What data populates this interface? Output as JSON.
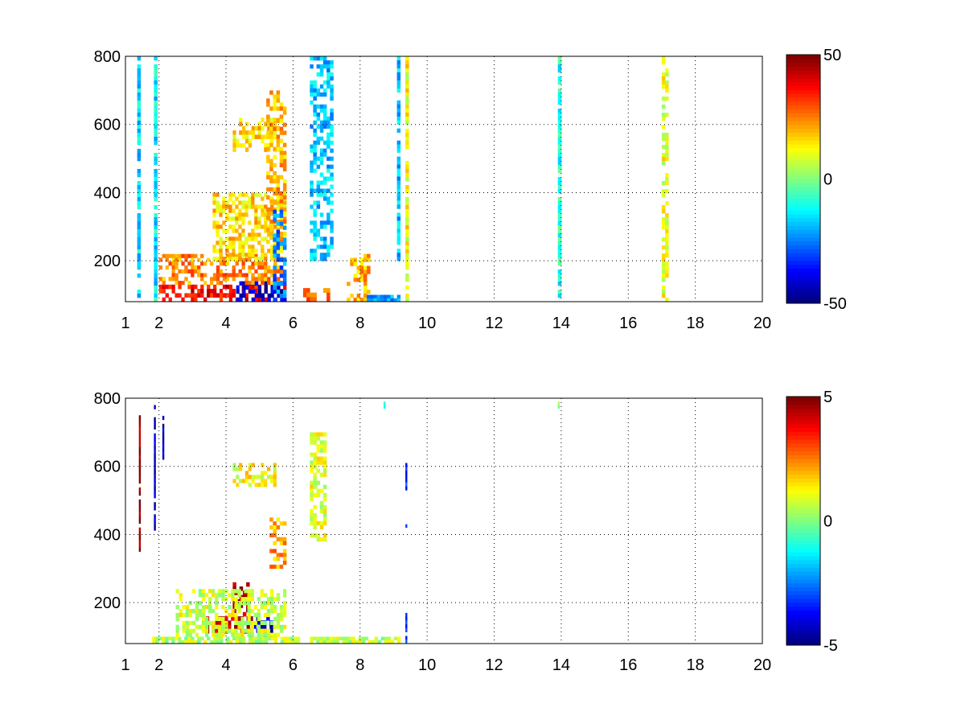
{
  "chart_data": [
    {
      "type": "heatmap",
      "title": "",
      "xlabel": "",
      "ylabel": "",
      "xlim": [
        1,
        20
      ],
      "ylim": [
        80,
        800
      ],
      "xticks": [
        "1",
        "2",
        "4",
        "6",
        "8",
        "10",
        "12",
        "14",
        "16",
        "18",
        "20"
      ],
      "yticks": [
        "200",
        "400",
        "600",
        "800"
      ],
      "grid": true,
      "colormap": "jet",
      "colorbar": {
        "clim": [
          -50,
          50
        ],
        "ticks": [
          "-50",
          "0",
          "50"
        ]
      },
      "features": [
        {
          "x": [
            2.0,
            5.8
          ],
          "y": [
            80,
            130
          ],
          "value": 38
        },
        {
          "x": [
            4.3,
            5.8
          ],
          "y": [
            80,
            140
          ],
          "value": -44
        },
        {
          "x": [
            2.0,
            5.7
          ],
          "y": [
            130,
            220
          ],
          "value": 24
        },
        {
          "x": [
            3.6,
            5.8
          ],
          "y": [
            200,
            400
          ],
          "value": 16
        },
        {
          "x": [
            4.2,
            5.6
          ],
          "y": [
            520,
            620
          ],
          "value": 16
        },
        {
          "x": [
            5.2,
            5.8
          ],
          "y": [
            250,
            700
          ],
          "value": 20
        },
        {
          "x": [
            5.4,
            5.8
          ],
          "y": [
            80,
            350
          ],
          "value": -25
        },
        {
          "x": [
            6.3,
            7.2
          ],
          "y": [
            80,
            120
          ],
          "value": 30
        },
        {
          "x": [
            7.6,
            8.3
          ],
          "y": [
            80,
            220
          ],
          "value": 20
        },
        {
          "x": [
            8.2,
            9.2
          ],
          "y": [
            80,
            100
          ],
          "value": -22
        },
        {
          "x": [
            6.5,
            7.2
          ],
          "y": [
            200,
            800
          ],
          "value": -18
        },
        {
          "x": [
            9.1,
            9.2
          ],
          "y": [
            200,
            800
          ],
          "value": -18
        },
        {
          "x": [
            9.35,
            9.45
          ],
          "y": [
            80,
            800
          ],
          "value": 12
        },
        {
          "x": [
            1.35,
            1.45
          ],
          "y": [
            80,
            800
          ],
          "value": -16
        },
        {
          "x": [
            1.85,
            1.95
          ],
          "y": [
            80,
            800
          ],
          "value": -14
        },
        {
          "x": [
            13.9,
            14.0
          ],
          "y": [
            80,
            800
          ],
          "value": -10
        },
        {
          "x": [
            17.0,
            17.2
          ],
          "y": [
            80,
            800
          ],
          "value": 10
        }
      ]
    },
    {
      "type": "heatmap",
      "title": "",
      "xlabel": "",
      "ylabel": "",
      "xlim": [
        1,
        20
      ],
      "ylim": [
        80,
        800
      ],
      "xticks": [
        "1",
        "2",
        "4",
        "6",
        "8",
        "10",
        "12",
        "14",
        "16",
        "18",
        "20"
      ],
      "yticks": [
        "200",
        "400",
        "600",
        "800"
      ],
      "grid": true,
      "colormap": "jet",
      "colorbar": {
        "clim": [
          -5,
          5
        ],
        "ticks": [
          "-5",
          "0",
          "5"
        ]
      },
      "features": [
        {
          "x": [
            1.8,
            6.2
          ],
          "y": [
            80,
            100
          ],
          "value": 0.6
        },
        {
          "x": [
            6.5,
            9.2
          ],
          "y": [
            80,
            100
          ],
          "value": 0.6
        },
        {
          "x": [
            3.4,
            4.8
          ],
          "y": [
            110,
            160
          ],
          "value": 4.6
        },
        {
          "x": [
            4.2,
            4.7
          ],
          "y": [
            160,
            260
          ],
          "value": 4.8
        },
        {
          "x": [
            4.7,
            5.4
          ],
          "y": [
            100,
            160
          ],
          "value": -4.5
        },
        {
          "x": [
            2.5,
            5.8
          ],
          "y": [
            100,
            240
          ],
          "value": 0.8
        },
        {
          "x": [
            5.3,
            5.8
          ],
          "y": [
            300,
            450
          ],
          "value": 2.2
        },
        {
          "x": [
            4.2,
            5.5
          ],
          "y": [
            540,
            610
          ],
          "value": 1.2
        },
        {
          "x": [
            6.5,
            7.0
          ],
          "y": [
            380,
            700
          ],
          "value": 0.9
        },
        {
          "x": [
            1.4,
            1.45
          ],
          "y": [
            350,
            750
          ],
          "value": 5.0
        },
        {
          "x": [
            1.85,
            1.9
          ],
          "y": [
            400,
            780
          ],
          "value": -4.5
        },
        {
          "x": [
            2.1,
            2.15
          ],
          "y": [
            620,
            760
          ],
          "value": -4.5
        },
        {
          "x": [
            9.35,
            9.4
          ],
          "y": [
            530,
            610
          ],
          "value": -3.3
        },
        {
          "x": [
            9.35,
            9.4
          ],
          "y": [
            80,
            170
          ],
          "value": -3.3
        },
        {
          "x": [
            9.35,
            9.4
          ],
          "y": [
            420,
            440
          ],
          "value": -3.3
        },
        {
          "x": [
            8.7,
            8.75
          ],
          "y": [
            770,
            800
          ],
          "value": -1.0
        },
        {
          "x": [
            13.9,
            13.95
          ],
          "y": [
            770,
            790
          ],
          "value": 0.6
        }
      ]
    }
  ]
}
